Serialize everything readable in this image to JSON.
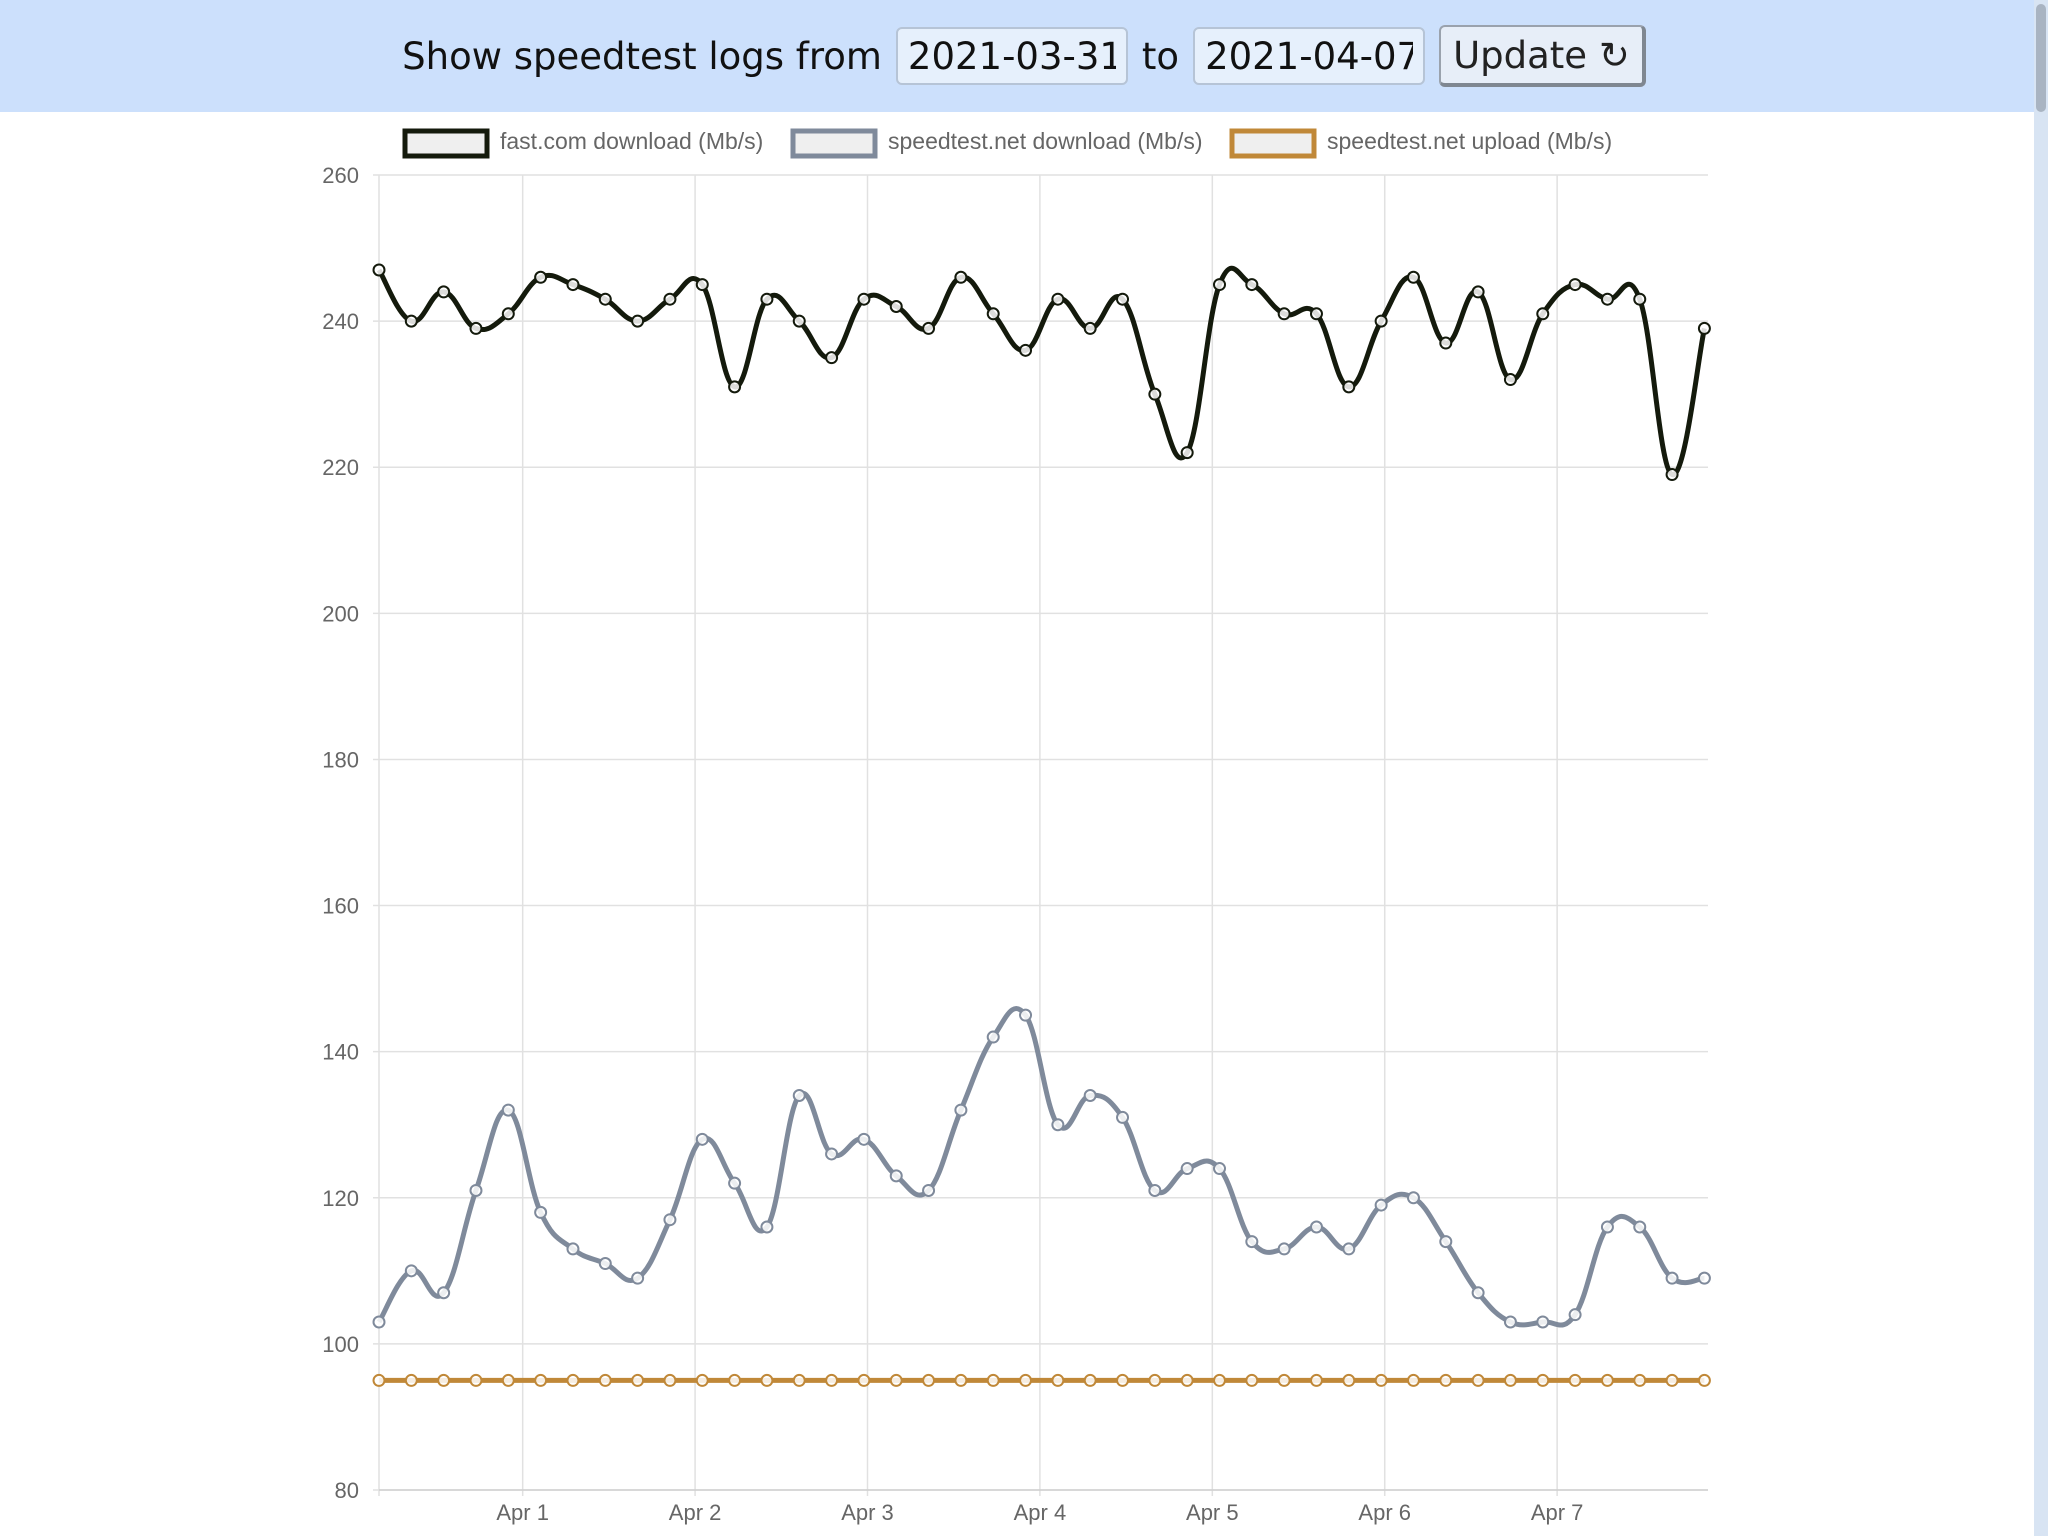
{
  "toolbar": {
    "label": "Show speedtest logs from",
    "from_date": "2021-03-31",
    "to_label": "to",
    "to_date": "2021-04-07",
    "update_label": "Update ↻"
  },
  "chart_data": {
    "type": "line",
    "x_labels": [
      "Apr 1",
      "Apr 2",
      "Apr 3",
      "Apr 4",
      "Apr 5",
      "Apr 6",
      "Apr 7"
    ],
    "y_ticks": [
      80,
      100,
      120,
      140,
      160,
      180,
      200,
      220,
      240,
      260
    ],
    "ylim": [
      80,
      260
    ],
    "xlim": [
      "2021-03-31T04:00",
      "2021-04-07T21:00"
    ],
    "grid": true,
    "legend_position": "top",
    "x": [
      "2021-03-31T04:00",
      "2021-03-31T08:30",
      "2021-03-31T13:00",
      "2021-03-31T17:30",
      "2021-03-31T22:00",
      "2021-04-01T02:30",
      "2021-04-01T07:00",
      "2021-04-01T11:30",
      "2021-04-01T16:00",
      "2021-04-01T20:30",
      "2021-04-02T01:00",
      "2021-04-02T05:30",
      "2021-04-02T10:00",
      "2021-04-02T14:30",
      "2021-04-02T19:00",
      "2021-04-02T23:30",
      "2021-04-03T04:00",
      "2021-04-03T08:30",
      "2021-04-03T13:00",
      "2021-04-03T17:30",
      "2021-04-03T22:00",
      "2021-04-04T02:30",
      "2021-04-04T07:00",
      "2021-04-04T11:30",
      "2021-04-04T16:00",
      "2021-04-04T20:30",
      "2021-04-05T01:00",
      "2021-04-05T05:30",
      "2021-04-05T10:00",
      "2021-04-05T14:30",
      "2021-04-05T19:00",
      "2021-04-05T23:30",
      "2021-04-06T04:00",
      "2021-04-06T08:30",
      "2021-04-06T13:00",
      "2021-04-06T17:30",
      "2021-04-06T22:00",
      "2021-04-07T02:30",
      "2021-04-07T07:00",
      "2021-04-07T11:30",
      "2021-04-07T16:00",
      "2021-04-07T20:30"
    ],
    "series": [
      {
        "name": "fast.com download (Mb/s)",
        "color": "#141a0c",
        "values": [
          247,
          240,
          244,
          239,
          241,
          246,
          245,
          243,
          240,
          243,
          245,
          231,
          243,
          240,
          235,
          243,
          242,
          239,
          246,
          241,
          236,
          243,
          239,
          243,
          230,
          222,
          245,
          245,
          241,
          241,
          231,
          240,
          246,
          237,
          244,
          232,
          241,
          245,
          243,
          243,
          219,
          239
        ]
      },
      {
        "name": "speedtest.net download (Mb/s)",
        "color": "#7f8a9b",
        "values": [
          103,
          110,
          107,
          121,
          132,
          118,
          113,
          111,
          109,
          117,
          128,
          122,
          116,
          134,
          126,
          128,
          123,
          121,
          132,
          142,
          145,
          130,
          134,
          131,
          121,
          124,
          124,
          114,
          113,
          116,
          113,
          119,
          120,
          114,
          107,
          103,
          103,
          104,
          116,
          116,
          109,
          109
        ]
      },
      {
        "name": "speedtest.net upload (Mb/s)",
        "color": "#c08838",
        "values": [
          95,
          95,
          95,
          95,
          95,
          95,
          95,
          95,
          95,
          95,
          95,
          95,
          95,
          95,
          95,
          95,
          95,
          95,
          95,
          95,
          95,
          95,
          95,
          95,
          95,
          95,
          95,
          95,
          95,
          95,
          95,
          95,
          95,
          95,
          95,
          95,
          95,
          95,
          95,
          95,
          95,
          95
        ]
      }
    ]
  }
}
